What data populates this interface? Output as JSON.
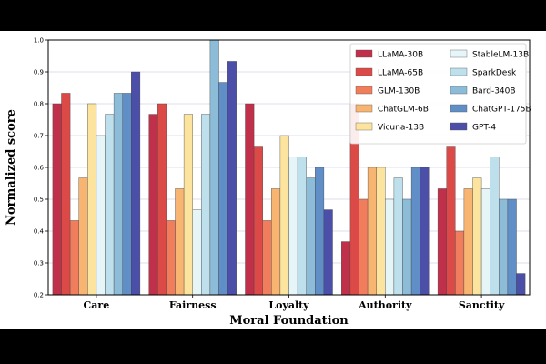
{
  "chart_data": {
    "type": "bar",
    "title": "",
    "xlabel": "Moral Foundation",
    "ylabel": "Normalized score",
    "ylim": [
      0.2,
      1.0
    ],
    "yticks": [
      "0.2",
      "0.3",
      "0.4",
      "0.5",
      "0.6",
      "0.7",
      "0.8",
      "0.9",
      "1.0"
    ],
    "grid": true,
    "legend_position": "top-right",
    "categories": [
      "Care",
      "Fairness",
      "Loyalty",
      "Authority",
      "Sanctity"
    ],
    "series": [
      {
        "name": "LLaMA-30B",
        "color": "#c1304a",
        "values": [
          0.8,
          0.767,
          0.8,
          0.367,
          0.533
        ]
      },
      {
        "name": "LLaMA-65B",
        "color": "#dc4a47",
        "values": [
          0.833,
          0.8,
          0.667,
          0.8,
          0.667
        ]
      },
      {
        "name": "GLM-130B",
        "color": "#f07d5c",
        "values": [
          0.433,
          0.433,
          0.433,
          0.5,
          0.4
        ]
      },
      {
        "name": "ChatGLM-6B",
        "color": "#f8b471",
        "values": [
          0.567,
          0.533,
          0.533,
          0.6,
          0.533
        ]
      },
      {
        "name": "Vicuna-13B",
        "color": "#fde49e",
        "values": [
          0.8,
          0.767,
          0.7,
          0.6,
          0.567
        ]
      },
      {
        "name": "StableLM-13B",
        "color": "#e6f5f8",
        "values": [
          0.7,
          0.467,
          0.633,
          0.5,
          0.533
        ]
      },
      {
        "name": "SparkDesk",
        "color": "#bde0ec",
        "values": [
          0.767,
          0.767,
          0.633,
          0.567,
          0.633
        ]
      },
      {
        "name": "Bard-340B",
        "color": "#8dbcd9",
        "values": [
          0.833,
          1.0,
          0.567,
          0.5,
          0.5
        ]
      },
      {
        "name": "ChatGPT-175B",
        "color": "#5f8fc6",
        "values": [
          0.833,
          0.867,
          0.6,
          0.6,
          0.5
        ]
      },
      {
        "name": "GPT-4",
        "color": "#4b4fa8",
        "values": [
          0.9,
          0.933,
          0.467,
          0.6,
          0.267
        ]
      }
    ]
  }
}
